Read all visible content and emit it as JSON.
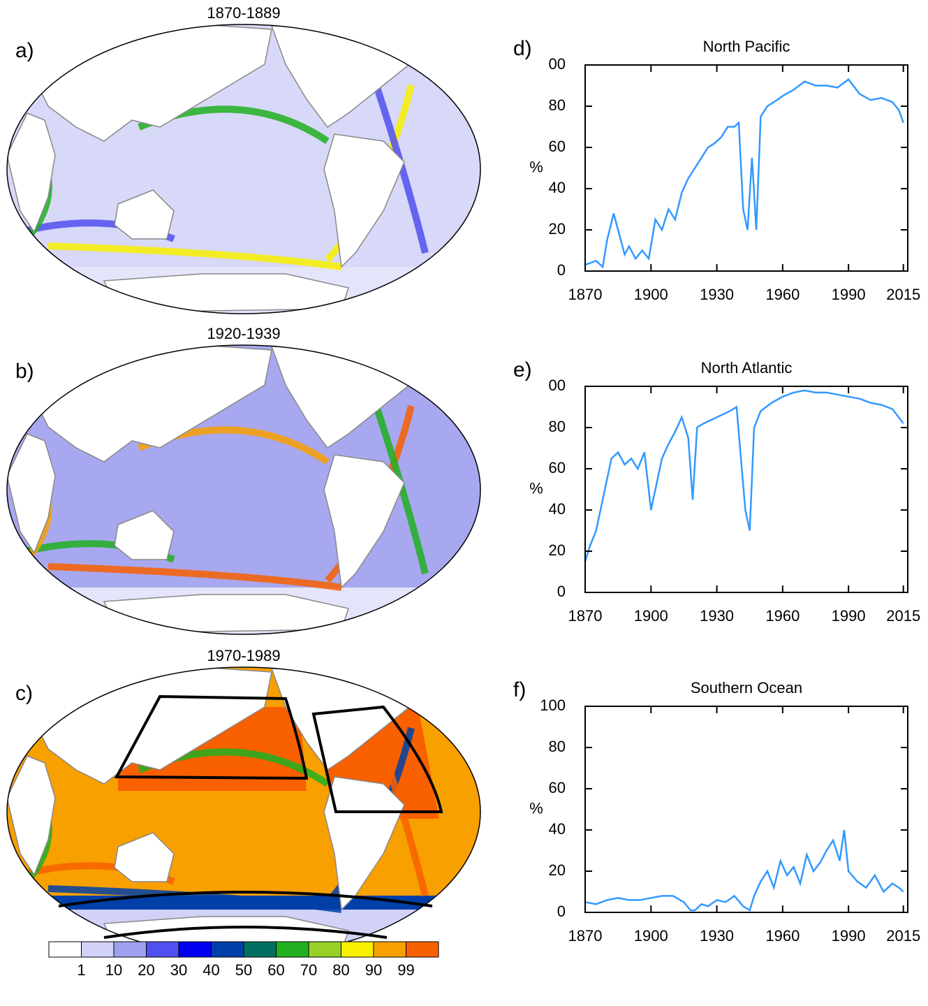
{
  "chart_data": [
    {
      "type": "map",
      "label": "a)",
      "title": "1870-1889"
    },
    {
      "type": "map",
      "label": "b)",
      "title": "1920-1939"
    },
    {
      "type": "map",
      "label": "c)",
      "title": "1970-1989"
    },
    {
      "type": "colorbar",
      "levels": [
        1,
        10,
        20,
        30,
        40,
        50,
        60,
        70,
        80,
        90,
        99
      ],
      "colors": [
        "#ffffff",
        "#d2d2f8",
        "#a0a0f0",
        "#5050f0",
        "#0000f0",
        "#0040a8",
        "#007060",
        "#20b020",
        "#98d028",
        "#f8f000",
        "#f8a000",
        "#f86000"
      ]
    },
    {
      "type": "line",
      "label": "d)",
      "title": "North Pacific",
      "ylabel": "%",
      "color": "#3399ff",
      "x": [
        1870,
        1875,
        1878,
        1880,
        1883,
        1885,
        1888,
        1890,
        1893,
        1896,
        1899,
        1902,
        1905,
        1908,
        1911,
        1914,
        1917,
        1920,
        1923,
        1926,
        1929,
        1932,
        1935,
        1938,
        1940,
        1942,
        1944,
        1946,
        1948,
        1950,
        1953,
        1956,
        1960,
        1965,
        1970,
        1975,
        1980,
        1985,
        1990,
        1995,
        2000,
        2005,
        2010,
        2013,
        2015
      ],
      "values": [
        3,
        5,
        2,
        15,
        28,
        20,
        8,
        12,
        6,
        10,
        6,
        25,
        20,
        30,
        25,
        38,
        45,
        50,
        55,
        60,
        62,
        65,
        70,
        70,
        72,
        30,
        20,
        55,
        20,
        75,
        80,
        82,
        85,
        88,
        92,
        90,
        90,
        89,
        93,
        86,
        83,
        84,
        82,
        78,
        72
      ],
      "xlim": [
        1870,
        2017
      ],
      "ylim": [
        0,
        100
      ],
      "xticks": [
        1870,
        1900,
        1930,
        1960,
        1990,
        2015
      ],
      "yticks": [
        0,
        20,
        40,
        60,
        80,
        {
          "value": 100,
          "label": "00"
        }
      ]
    },
    {
      "type": "line",
      "label": "e)",
      "title": "North Atlantic",
      "ylabel": "%",
      "color": "#3399ff",
      "x": [
        1870,
        1872,
        1875,
        1878,
        1880,
        1882,
        1885,
        1888,
        1891,
        1894,
        1897,
        1900,
        1902,
        1905,
        1908,
        1911,
        1914,
        1917,
        1919,
        1921,
        1924,
        1928,
        1932,
        1936,
        1939,
        1941,
        1943,
        1945,
        1947,
        1950,
        1955,
        1960,
        1965,
        1970,
        1975,
        1980,
        1985,
        1990,
        1995,
        2000,
        2005,
        2010,
        2015
      ],
      "values": [
        15,
        22,
        30,
        45,
        55,
        65,
        68,
        62,
        65,
        60,
        68,
        40,
        50,
        65,
        72,
        78,
        85,
        75,
        45,
        80,
        82,
        84,
        86,
        88,
        90,
        65,
        40,
        30,
        80,
        88,
        92,
        95,
        97,
        98,
        97,
        97,
        96,
        95,
        94,
        92,
        91,
        89,
        82
      ],
      "xlim": [
        1870,
        2017
      ],
      "ylim": [
        0,
        100
      ],
      "xticks": [
        1870,
        1900,
        1930,
        1960,
        1990,
        2015
      ],
      "yticks": [
        0,
        20,
        40,
        60,
        80,
        {
          "value": 100,
          "label": "00"
        }
      ]
    },
    {
      "type": "line",
      "label": "f)",
      "title": "Southern Ocean",
      "ylabel": "%",
      "color": "#3399ff",
      "x": [
        1870,
        1875,
        1880,
        1885,
        1890,
        1895,
        1900,
        1905,
        1910,
        1915,
        1918,
        1920,
        1923,
        1926,
        1930,
        1934,
        1938,
        1942,
        1945,
        1947,
        1950,
        1953,
        1956,
        1959,
        1962,
        1965,
        1968,
        1971,
        1974,
        1977,
        1980,
        1983,
        1986,
        1988,
        1990,
        1994,
        1998,
        2002,
        2006,
        2010,
        2013,
        2015
      ],
      "values": [
        5,
        4,
        6,
        7,
        6,
        6,
        7,
        8,
        8,
        5,
        1,
        1,
        4,
        3,
        6,
        5,
        8,
        3,
        1,
        8,
        15,
        20,
        12,
        25,
        18,
        22,
        14,
        28,
        20,
        24,
        30,
        35,
        25,
        40,
        20,
        15,
        12,
        18,
        10,
        14,
        12,
        10
      ],
      "xlim": [
        1870,
        2017
      ],
      "ylim": [
        0,
        100
      ],
      "xticks": [
        1870,
        1900,
        1930,
        1960,
        1990,
        2015
      ],
      "yticks": [
        0,
        20,
        40,
        60,
        80,
        100
      ]
    }
  ]
}
